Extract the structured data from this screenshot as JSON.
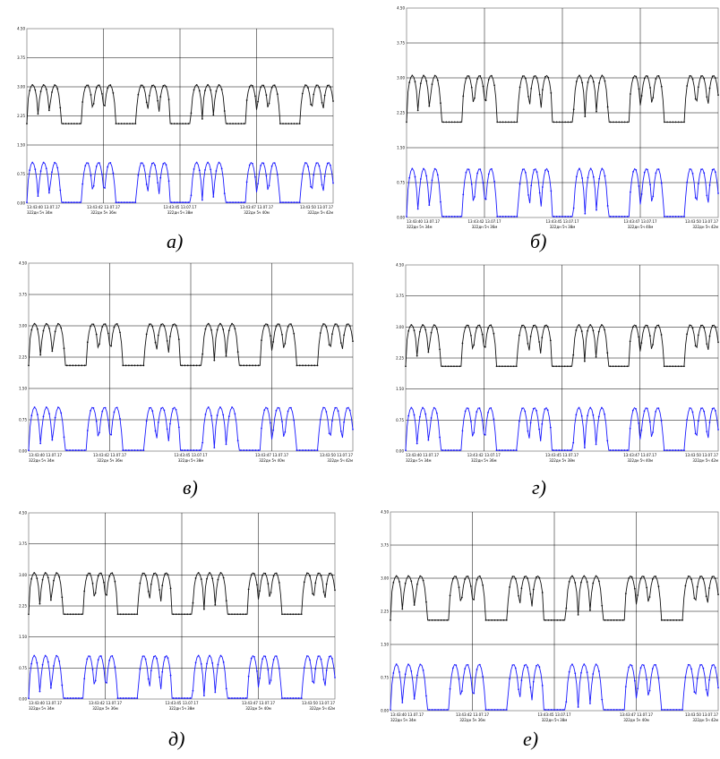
{
  "colors": {
    "upper_series": "#111111",
    "lower_series": "#1a1aff",
    "grid": "#000000",
    "frame": "#888888"
  },
  "chart_data": [
    {
      "caption": "а)",
      "type": "line",
      "y_ticks": [
        "0.00",
        "0.75",
        "1.50",
        "2.25",
        "3.00",
        "3.75",
        "4.50"
      ],
      "ylim": [
        0,
        4.5
      ],
      "x_ticks": [
        "13:43:40 13.07.17",
        "13:43:42 13.07.17",
        "13:43:45 13.07.17",
        "13:43:47 13.07.17",
        "13:43:50 13.07.17"
      ],
      "x_subticks": [
        "322дн 5ч 34м",
        "322дн 5ч 36м",
        "322дн 5ч 38м",
        "322дн 5ч 40м",
        "322дн 5ч 42м"
      ],
      "grid": true,
      "series": [
        {
          "color": "#111111",
          "low": 2.05,
          "high": 3.05
        },
        {
          "color": "#1a1aff",
          "low": 0.02,
          "high": 1.05
        }
      ]
    },
    {
      "caption": "б)",
      "type": "line",
      "y_ticks": [
        "0.00",
        "0.75",
        "1.50",
        "2.25",
        "3.00",
        "3.75",
        "4.50"
      ],
      "ylim": [
        0,
        4.5
      ],
      "x_ticks": [
        "13:43:40 13.07.17",
        "13:43:42 13.07.17",
        "13:43:45 13.07.17",
        "13:43:47 13.07.17",
        "13:43:50 13.07.17"
      ],
      "x_subticks": [
        "322дн 5ч 34м",
        "322дн 5ч 36м",
        "322дн 5ч 38м",
        "322дн 5ч 40м",
        "322дн 5ч 42м"
      ],
      "grid": true,
      "series": [
        {
          "color": "#111111",
          "low": 2.05,
          "high": 3.05
        },
        {
          "color": "#1a1aff",
          "low": 0.02,
          "high": 1.05
        }
      ]
    },
    {
      "caption": "в)",
      "type": "line",
      "y_ticks": [
        "0.00",
        "0.75",
        "1.50",
        "2.25",
        "3.00",
        "3.75",
        "4.50"
      ],
      "ylim": [
        0,
        4.5
      ],
      "x_ticks": [
        "13:43:40 13.07.17",
        "13:43:42 13.07.17",
        "13:43:45 13.07.17",
        "13:43:47 13.07.17",
        "13:43:50 13.07.17"
      ],
      "x_subticks": [
        "322дн 5ч 34м",
        "322дн 5ч 36м",
        "322дн 5ч 38м",
        "322дн 5ч 40м",
        "322дн 5ч 42м"
      ],
      "grid": true,
      "series": [
        {
          "color": "#111111",
          "low": 2.05,
          "high": 3.05
        },
        {
          "color": "#1a1aff",
          "low": 0.02,
          "high": 1.05
        }
      ]
    },
    {
      "caption": "г)",
      "type": "line",
      "y_ticks": [
        "0.00",
        "0.75",
        "1.50",
        "2.25",
        "3.00",
        "3.75",
        "4.50"
      ],
      "ylim": [
        0,
        4.5
      ],
      "x_ticks": [
        "13:43:40 13.07.17",
        "13:43:42 13.07.17",
        "13:43:45 13.07.17",
        "13:43:47 13.07.17",
        "13:43:50 13.07.17"
      ],
      "x_subticks": [
        "322дн 5ч 34м",
        "322дн 5ч 36м",
        "322дн 5ч 38м",
        "322дн 5ч 40м",
        "322дн 5ч 42м"
      ],
      "grid": true,
      "series": [
        {
          "color": "#111111",
          "low": 2.05,
          "high": 3.05
        },
        {
          "color": "#1a1aff",
          "low": 0.02,
          "high": 1.05
        }
      ]
    },
    {
      "caption": "д)",
      "type": "line",
      "y_ticks": [
        "0.00",
        "0.75",
        "1.50",
        "2.25",
        "3.00",
        "3.75",
        "4.50"
      ],
      "ylim": [
        0,
        4.5
      ],
      "x_ticks": [
        "13:43:40 13.07.17",
        "13:43:42 13.07.17",
        "13:43:45 13.07.17",
        "13:43:47 13.07.17",
        "13:43:50 13.07.17"
      ],
      "x_subticks": [
        "322дн 5ч 34м",
        "322дн 5ч 36м",
        "322дн 5ч 38м",
        "322дн 5ч 40м",
        "322дн 5ч 42м"
      ],
      "grid": true,
      "series": [
        {
          "color": "#111111",
          "low": 2.05,
          "high": 3.05
        },
        {
          "color": "#1a1aff",
          "low": 0.02,
          "high": 1.05
        }
      ]
    },
    {
      "caption": "е)",
      "type": "line",
      "y_ticks": [
        "0.00",
        "0.75",
        "1.50",
        "2.25",
        "3.00",
        "3.75",
        "4.50"
      ],
      "ylim": [
        0,
        4.5
      ],
      "x_ticks": [
        "13:43:40 13.07.17",
        "13:43:42 13.07.17",
        "13:43:45 13.07.17",
        "13:43:47 13.07.17",
        "13:43:50 13.07.17"
      ],
      "x_subticks": [
        "322дн 5ч 34м",
        "322дн 5ч 36м",
        "322дн 5ч 38м",
        "322дн 5ч 40м",
        "322дн 5ч 42м"
      ],
      "grid": true,
      "series": [
        {
          "color": "#111111",
          "low": 2.05,
          "high": 3.05
        },
        {
          "color": "#1a1aff",
          "low": 0.02,
          "high": 1.05
        }
      ]
    }
  ]
}
